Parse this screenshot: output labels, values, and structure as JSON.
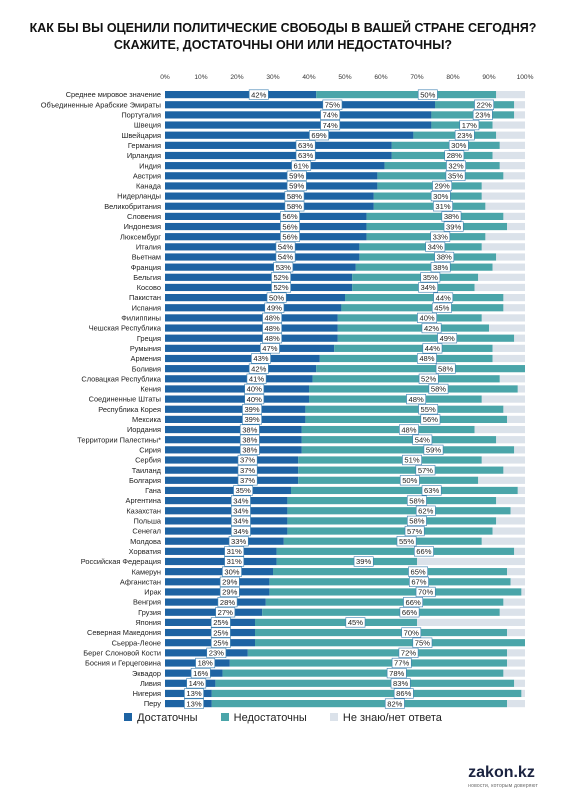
{
  "title_lines": [
    "КАК БЫ ВЫ ОЦЕНИЛИ ПОЛИТИЧЕСКИЕ СВОБОДЫ В ВАШЕЙ СТРАНЕ СЕГОДНЯ?",
    "СКАЖИТЕ, ДОСТАТОЧНЫ ОНИ ИЛИ НЕДОСТАТОЧНЫ?"
  ],
  "logo": {
    "name": "zakon.kz",
    "tagline": "новости, которым доверяют"
  },
  "colors": {
    "sufficient": "#1d63a3",
    "insufficient": "#4aa5a9",
    "dontknow": "#dbe2ea"
  },
  "chart_data": {
    "type": "bar",
    "orientation": "horizontal",
    "stacked": true,
    "xlim": [
      0,
      100
    ],
    "x_ticks": [
      "0%",
      "10%",
      "20%",
      "30%",
      "40%",
      "50%",
      "60%",
      "70%",
      "80%",
      "90%",
      "100%"
    ],
    "legend": {
      "position": "bottom"
    },
    "categories": [
      "Среднее мировое значение",
      "Объединенные Арабские Эмираты",
      "Португалия",
      "Швеция",
      "Швейцария",
      "Германия",
      "Ирландия",
      "Индия",
      "Австрия",
      "Канада",
      "Нидерланды",
      "Великобритания",
      "Словения",
      "Индонезия",
      "Люксембург",
      "Италия",
      "Вьетнам",
      "Франция",
      "Бельгия",
      "Косово",
      "Пакистан",
      "Испания",
      "Филиппины",
      "Чешская Республика",
      "Греция",
      "Румыния",
      "Армения",
      "Боливия",
      "Словацкая Республика",
      "Кения",
      "Соединенные Штаты",
      "Республика Корея",
      "Мексика",
      "Иордания",
      "Территории Палестины*",
      "Сирия",
      "Сербия",
      "Таиланд",
      "Болгария",
      "Гана",
      "Аргентина",
      "Казахстан",
      "Польша",
      "Сенегал",
      "Молдова",
      "Хорватия",
      "Российская Федерация",
      "Камерун",
      "Афганистан",
      "Ирак",
      "Венгрия",
      "Грузия",
      "Япония",
      "Северная Македония",
      "Сьерра-Леоне",
      "Берег Слоновой Кости",
      "Босния и Герцеговина",
      "Эквадор",
      "Ливия",
      "Нигерия",
      "Перу"
    ],
    "series": [
      {
        "name": "Достаточны",
        "values": [
          42,
          75,
          74,
          74,
          69,
          63,
          63,
          61,
          59,
          59,
          58,
          58,
          56,
          56,
          56,
          54,
          54,
          53,
          52,
          52,
          50,
          49,
          48,
          48,
          48,
          47,
          43,
          42,
          41,
          40,
          40,
          39,
          39,
          38,
          38,
          38,
          37,
          37,
          37,
          35,
          34,
          34,
          34,
          34,
          33,
          31,
          31,
          30,
          29,
          29,
          28,
          27,
          25,
          25,
          25,
          23,
          18,
          16,
          14,
          13,
          13
        ]
      },
      {
        "name": "Недостаточны",
        "values": [
          50,
          22,
          23,
          17,
          23,
          30,
          28,
          32,
          35,
          29,
          30,
          31,
          38,
          39,
          33,
          34,
          38,
          38,
          35,
          34,
          44,
          45,
          40,
          42,
          49,
          44,
          48,
          58,
          52,
          58,
          48,
          55,
          56,
          48,
          54,
          59,
          51,
          57,
          50,
          63,
          58,
          62,
          58,
          57,
          55,
          66,
          39,
          65,
          67,
          70,
          66,
          66,
          45,
          70,
          75,
          72,
          77,
          78,
          83,
          86,
          82
        ]
      },
      {
        "name": "Не знаю/нет ответа",
        "values": [
          8,
          3,
          3,
          9,
          8,
          7,
          9,
          7,
          6,
          12,
          12,
          11,
          6,
          5,
          11,
          12,
          8,
          9,
          13,
          14,
          6,
          6,
          12,
          10,
          3,
          9,
          9,
          0,
          7,
          2,
          12,
          6,
          5,
          14,
          8,
          3,
          12,
          6,
          13,
          2,
          8,
          4,
          8,
          9,
          12,
          3,
          30,
          5,
          4,
          1,
          6,
          7,
          30,
          5,
          0,
          5,
          5,
          6,
          3,
          1,
          5
        ]
      }
    ]
  }
}
